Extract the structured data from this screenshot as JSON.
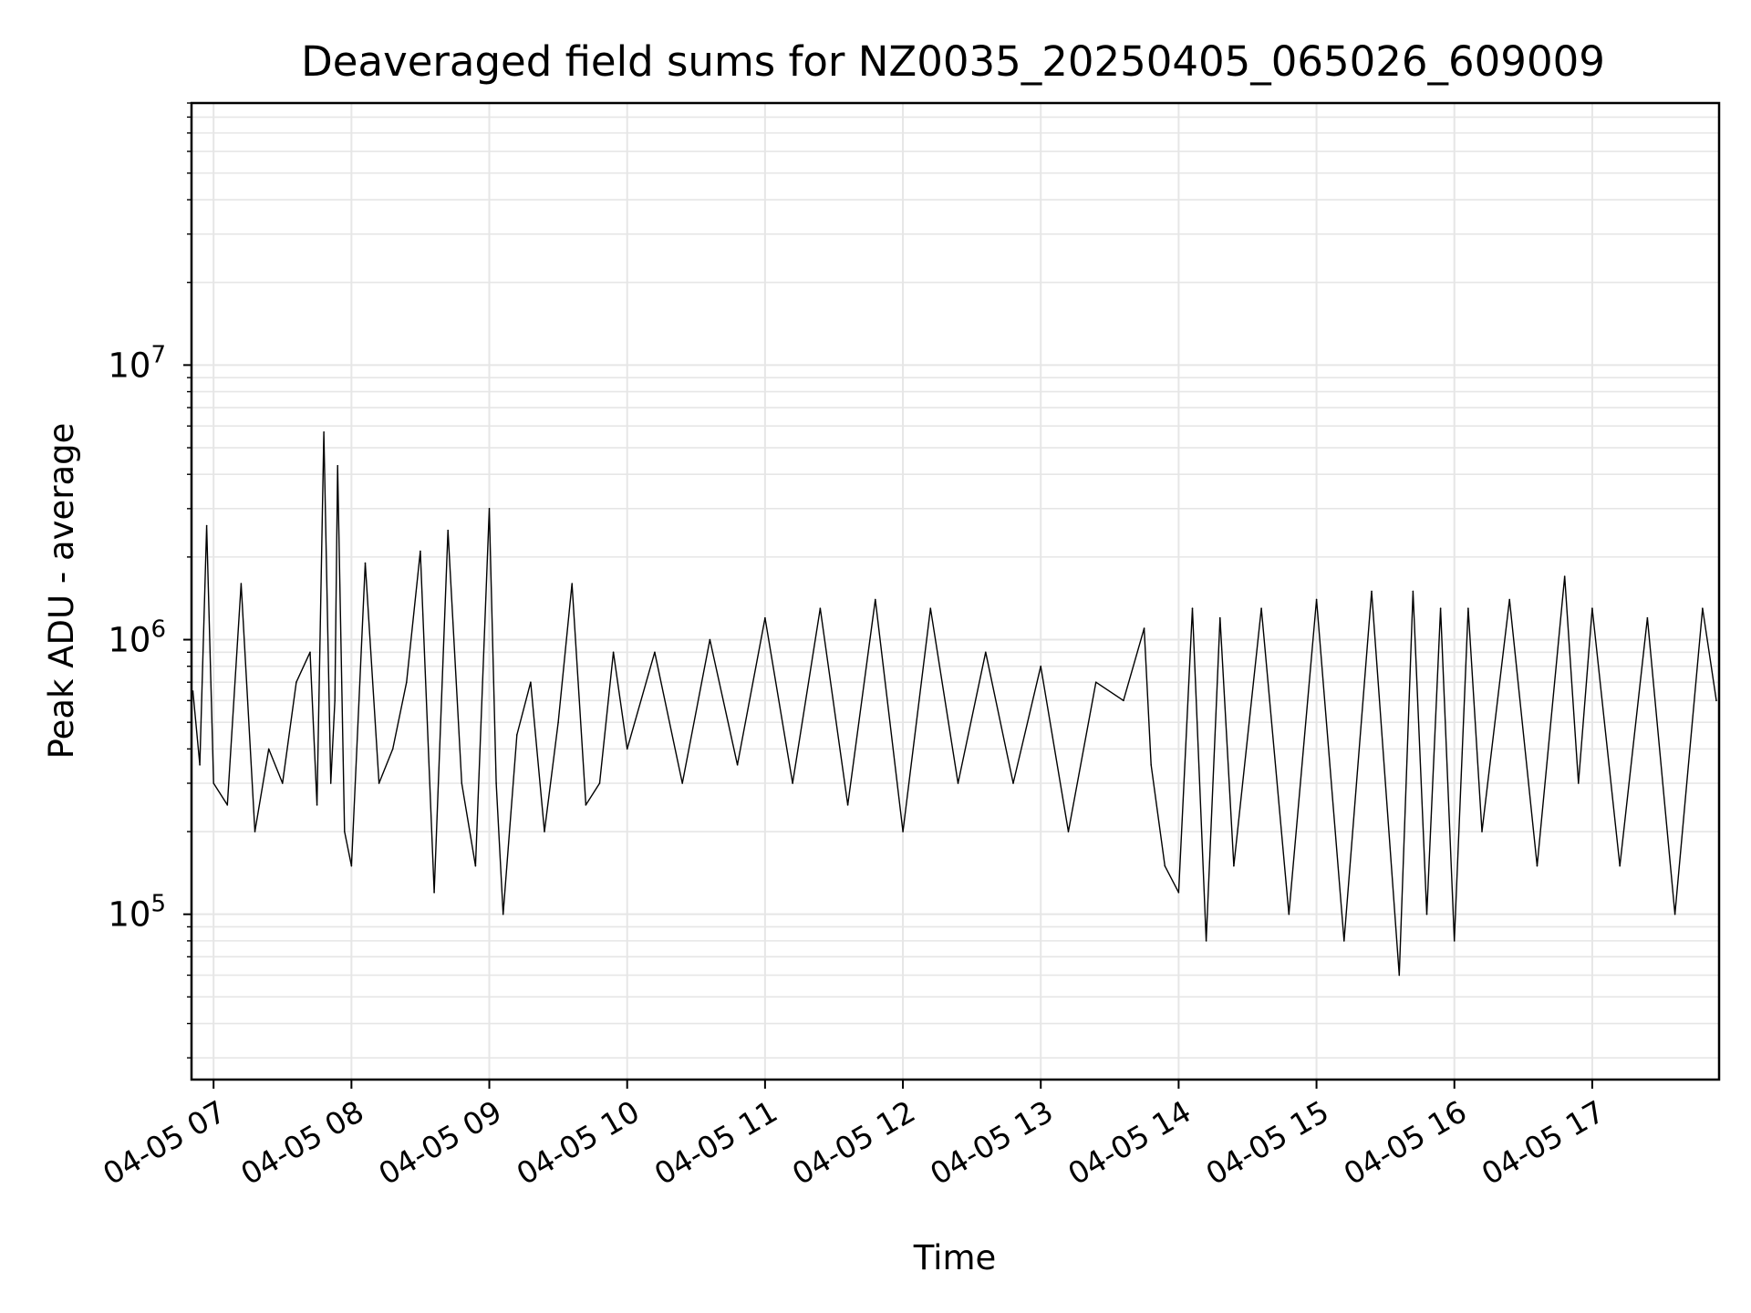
{
  "chart_data": {
    "type": "line",
    "title": "Deaveraged field sums for NZ0035_20250405_065026_609009",
    "xlabel": "Time",
    "ylabel": "Peak ADU - average",
    "yscale": "log",
    "ylim": [
      25000,
      90000000
    ],
    "xlim_hours": [
      6.84,
      17.92
    ],
    "grid": true,
    "line_color": "#000000",
    "grid_color": "#e6e6e6",
    "x_ticks": [
      {
        "label": "04-05 07",
        "hour": 7
      },
      {
        "label": "04-05 08",
        "hour": 8
      },
      {
        "label": "04-05 09",
        "hour": 9
      },
      {
        "label": "04-05 10",
        "hour": 10
      },
      {
        "label": "04-05 11",
        "hour": 11
      },
      {
        "label": "04-05 12",
        "hour": 12
      },
      {
        "label": "04-05 13",
        "hour": 13
      },
      {
        "label": "04-05 14",
        "hour": 14
      },
      {
        "label": "04-05 15",
        "hour": 15
      },
      {
        "label": "04-05 16",
        "hour": 16
      },
      {
        "label": "04-05 17",
        "hour": 17
      }
    ],
    "y_ticks": [
      {
        "base": "10",
        "exp": "5",
        "value": 100000
      },
      {
        "base": "10",
        "exp": "6",
        "value": 1000000
      },
      {
        "base": "10",
        "exp": "7",
        "value": 10000000
      }
    ],
    "series": [
      {
        "x_hours": [
          6.85,
          6.9,
          6.95,
          7.0,
          7.1,
          7.2,
          7.3,
          7.4,
          7.5,
          7.6,
          7.7,
          7.75,
          7.8,
          7.85,
          7.88,
          7.9,
          7.95,
          8.0,
          8.1,
          8.2,
          8.3,
          8.4,
          8.5,
          8.6,
          8.7,
          8.8,
          8.9,
          9.0,
          9.05,
          9.1,
          9.2,
          9.3,
          9.4,
          9.5,
          9.6,
          9.7,
          9.8,
          9.9,
          10.0,
          10.2,
          10.4,
          10.6,
          10.8,
          11.0,
          11.2,
          11.4,
          11.6,
          11.8,
          12.0,
          12.2,
          12.4,
          12.6,
          12.8,
          13.0,
          13.2,
          13.4,
          13.6,
          13.75,
          13.8,
          13.9,
          14.0,
          14.1,
          14.2,
          14.3,
          14.4,
          14.6,
          14.8,
          15.0,
          15.2,
          15.4,
          15.6,
          15.7,
          15.8,
          15.9,
          16.0,
          16.1,
          16.2,
          16.4,
          16.6,
          16.8,
          16.9,
          17.0,
          17.2,
          17.4,
          17.6,
          17.8,
          17.9
        ],
        "values": [
          650000,
          350000,
          2600000,
          300000,
          250000,
          1600000,
          200000,
          400000,
          300000,
          700000,
          900000,
          250000,
          5700000,
          300000,
          600000,
          4300000,
          200000,
          150000,
          1900000,
          300000,
          400000,
          700000,
          2100000,
          120000,
          2500000,
          300000,
          150000,
          3000000,
          300000,
          100000,
          450000,
          700000,
          200000,
          500000,
          1600000,
          250000,
          300000,
          900000,
          400000,
          900000,
          300000,
          1000000,
          350000,
          1200000,
          300000,
          1300000,
          250000,
          1400000,
          200000,
          1300000,
          300000,
          900000,
          300000,
          800000,
          200000,
          700000,
          600000,
          1100000,
          350000,
          150000,
          120000,
          1300000,
          80000,
          1200000,
          150000,
          1300000,
          100000,
          1400000,
          80000,
          1500000,
          60000,
          1500000,
          100000,
          1300000,
          80000,
          1300000,
          200000,
          1400000,
          150000,
          1700000,
          300000,
          1300000,
          150000,
          1200000,
          100000,
          1300000,
          600000
        ]
      }
    ]
  }
}
